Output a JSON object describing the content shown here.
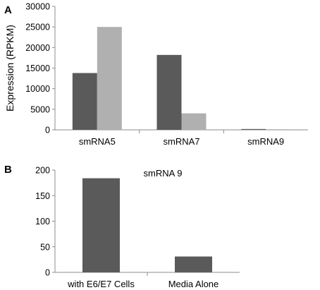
{
  "colors": {
    "dark": "#5a5a5a",
    "light": "#b0b0b0"
  },
  "chart_data": [
    {
      "panel": "A",
      "type": "bar",
      "title": "",
      "ylabel": "Expression (RPKM)",
      "xlabel": "",
      "ylim": [
        0,
        30000
      ],
      "yticks": [
        0,
        5000,
        10000,
        15000,
        20000,
        25000,
        30000
      ],
      "categories": [
        "smRNA5",
        "smRNA7",
        "smRNA9"
      ],
      "series": [
        {
          "values": [
            13800,
            18200,
            200
          ]
        },
        {
          "values": [
            25000,
            4000,
            30
          ]
        }
      ],
      "grid": false,
      "legend": "none"
    },
    {
      "panel": "B",
      "type": "bar",
      "title": "smRNA 9",
      "ylabel": "",
      "xlabel": "",
      "ylim": [
        0,
        200
      ],
      "yticks": [
        0,
        50,
        100,
        150,
        200
      ],
      "categories": [
        "with E6/E7 Cells",
        "Media Alone"
      ],
      "series": [
        {
          "values": [
            184,
            31
          ]
        }
      ],
      "grid": false,
      "legend": "none"
    }
  ]
}
